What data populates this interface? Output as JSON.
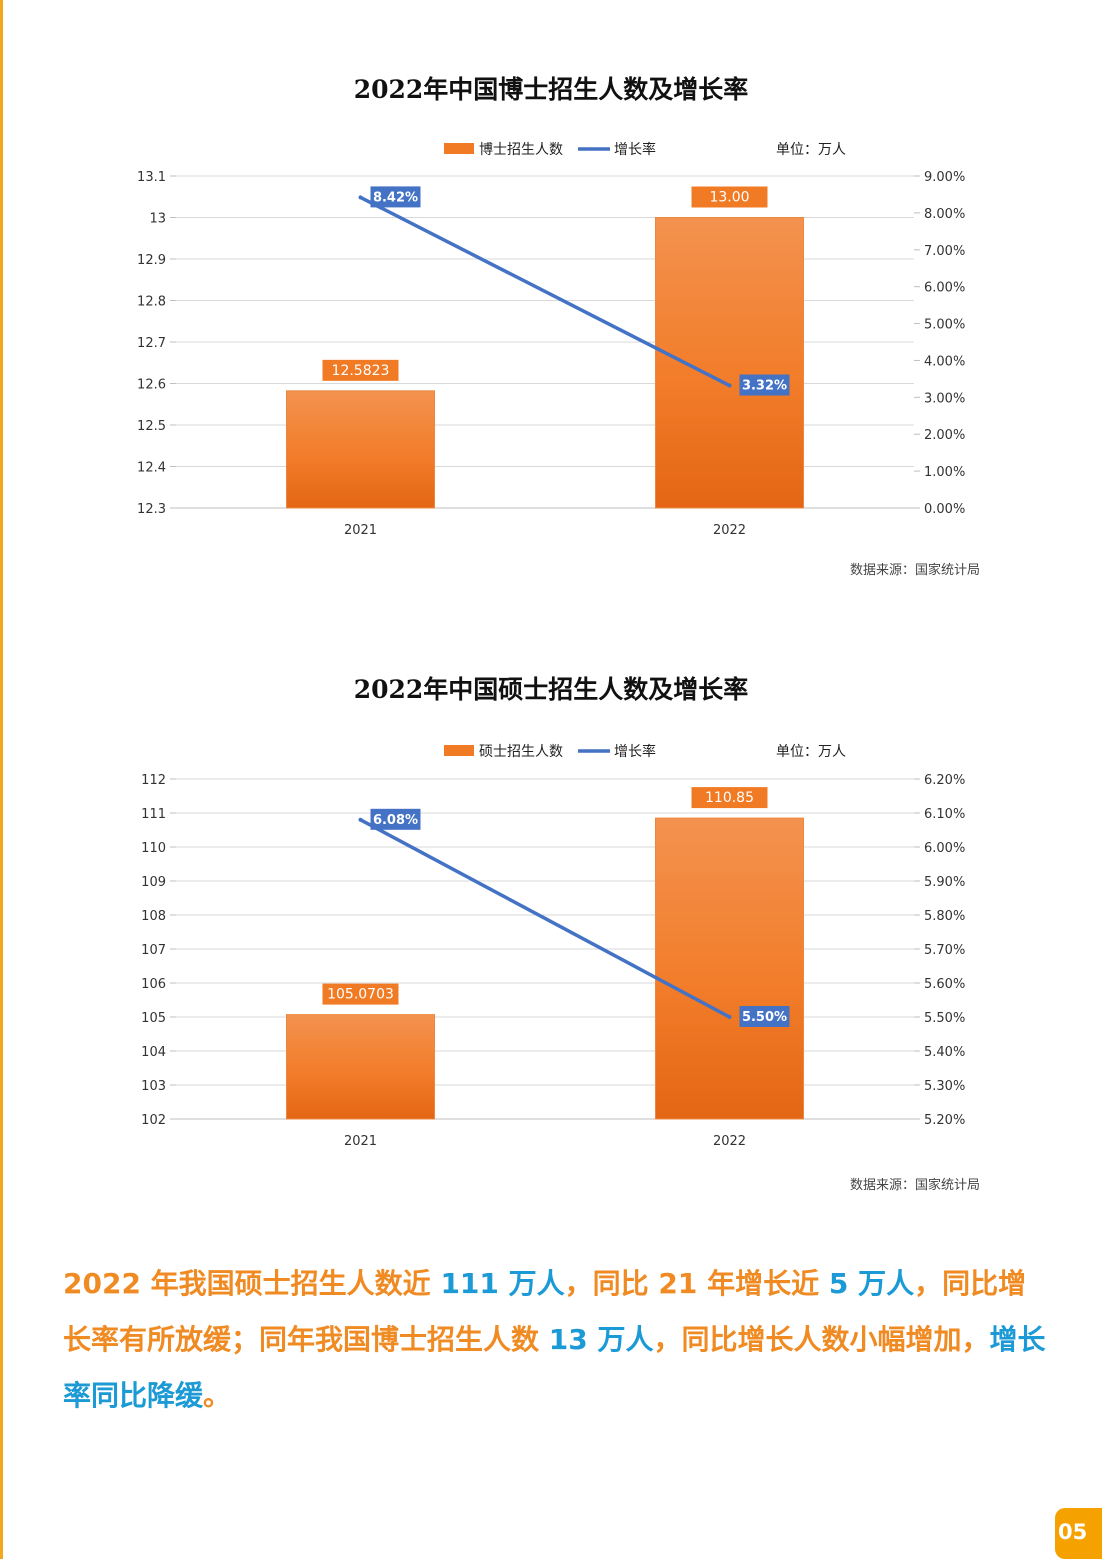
{
  "chart_data": [
    {
      "type": "bar",
      "title": "2022年中国博士招生人数及增长率",
      "unit_label": "单位：万人",
      "categories": [
        "2021",
        "2022"
      ],
      "series": [
        {
          "name": "博士招生人数",
          "type": "bar",
          "axis": "left",
          "values": [
            12.5823,
            13.0
          ],
          "labels": [
            "12.5823",
            "13.00"
          ]
        },
        {
          "name": "增长率",
          "type": "line",
          "axis": "right",
          "values": [
            8.42,
            3.32
          ],
          "labels": [
            "8.42%",
            "3.32%"
          ]
        }
      ],
      "y_left": {
        "min": 12.3,
        "max": 13.1,
        "ticks": [
          "13.1",
          "13",
          "12.9",
          "12.8",
          "12.7",
          "12.6",
          "12.5",
          "12.4",
          "12.3"
        ]
      },
      "y_right": {
        "min": 0,
        "max": 9,
        "ticks": [
          "9.00%",
          "8.00%",
          "7.00%",
          "6.00%",
          "5.00%",
          "4.00%",
          "3.00%",
          "2.00%",
          "1.00%",
          "0.00%"
        ]
      },
      "grid": true,
      "legend": "top-center",
      "source": "数据来源：国家统计局"
    },
    {
      "type": "bar",
      "title": "2022年中国硕士招生人数及增长率",
      "unit_label": "单位：万人",
      "categories": [
        "2021",
        "2022"
      ],
      "series": [
        {
          "name": "硕士招生人数",
          "type": "bar",
          "axis": "left",
          "values": [
            105.0703,
            110.85
          ],
          "labels": [
            "105.0703",
            "110.85"
          ]
        },
        {
          "name": "增长率",
          "type": "line",
          "axis": "right",
          "values": [
            6.08,
            5.5
          ],
          "labels": [
            "6.08%",
            "5.50%"
          ]
        }
      ],
      "y_left": {
        "min": 102,
        "max": 112,
        "ticks": [
          "112",
          "111",
          "110",
          "109",
          "108",
          "107",
          "106",
          "105",
          "104",
          "103",
          "102"
        ]
      },
      "y_right": {
        "min": 5.2,
        "max": 6.2,
        "ticks": [
          "6.20%",
          "6.10%",
          "6.00%",
          "5.90%",
          "5.80%",
          "5.70%",
          "5.60%",
          "5.50%",
          "5.40%",
          "5.30%",
          "5.20%"
        ]
      },
      "grid": true,
      "legend": "top-center",
      "source": "数据来源：国家统计局"
    }
  ],
  "summary": {
    "p1": "2022 年我国硕士招生人数近 ",
    "h1": "111 万人",
    "p2": "，同比 21 年增长近 ",
    "h2": "5 万人",
    "p3": "，同比增长率有所放缓；同年我国博士招生人数 ",
    "h3": "13 万人",
    "p4": "，同比增长人数小幅增加，",
    "h4": "增长率同比降缓",
    "p5": "。"
  },
  "page_number": "05",
  "colors": {
    "bar": "#f07b24",
    "line": "#4472c4",
    "accent": "#f2a81d",
    "highlight": "#1c9ad6"
  }
}
